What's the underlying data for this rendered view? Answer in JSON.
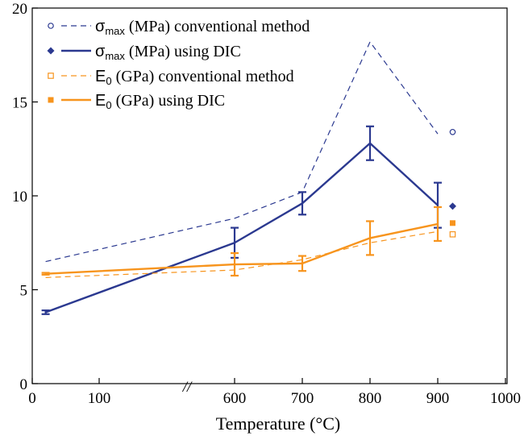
{
  "colors": {
    "sigma": "#2b3990",
    "modulus": "#f7941d",
    "axis": "#000000"
  },
  "chart_data": {
    "type": "line",
    "xlabel": "Temperature (°C)",
    "xlim": [
      0,
      1000
    ],
    "ylim": [
      0,
      20
    ],
    "x_ticks": [
      {
        "value": 0,
        "label": "0"
      },
      {
        "value": 100,
        "label": "100"
      },
      {
        "value": 600,
        "label": "600"
      },
      {
        "value": 700,
        "label": "700"
      },
      {
        "value": 800,
        "label": "800"
      },
      {
        "value": 900,
        "label": "900"
      },
      {
        "value": 1000,
        "label": "1000"
      }
    ],
    "y_ticks": [
      {
        "value": 0,
        "label": "0"
      },
      {
        "value": 5,
        "label": "5"
      },
      {
        "value": 10,
        "label": "10"
      },
      {
        "value": 15,
        "label": "15"
      },
      {
        "value": 20,
        "label": "20"
      }
    ],
    "axis_break_symbol": "//",
    "grid": false,
    "legend_placement": "top-left",
    "series": [
      {
        "sym": "σ",
        "sub": "max",
        "rest": " (MPa) conventional method",
        "color": "#2b3990",
        "dash": true,
        "marker": "circle-open",
        "x": [
          20,
          600,
          700,
          800,
          900
        ],
        "y": [
          6.5,
          8.8,
          10.2,
          18.2,
          13.3
        ],
        "avg": {
          "x": 922,
          "y": 13.4
        }
      },
      {
        "sym": "σ",
        "sub": "max",
        "rest": " (MPa) using DIC",
        "color": "#2b3990",
        "dash": false,
        "marker": "diamond-filled",
        "x": [
          20,
          600,
          700,
          800,
          900
        ],
        "y": [
          3.8,
          7.5,
          9.6,
          12.8,
          9.5
        ],
        "err": [
          0.1,
          0.8,
          0.6,
          0.9,
          1.2
        ],
        "avg": {
          "x": 922,
          "y": 9.45
        }
      },
      {
        "sym": "E",
        "sub": "0",
        "rest": "  (GPa) conventional method",
        "color": "#f7941d",
        "dash": true,
        "marker": "square-open",
        "x": [
          20,
          600,
          700,
          800,
          900
        ],
        "y": [
          5.65,
          6.05,
          6.6,
          7.5,
          8.1
        ],
        "avg": {
          "x": 922,
          "y": 7.95
        }
      },
      {
        "sym": "E",
        "sub": "0",
        "rest": "  (GPa) using DIC",
        "color": "#f7941d",
        "dash": false,
        "marker": "square-filled",
        "x": [
          20,
          600,
          700,
          800,
          900
        ],
        "y": [
          5.85,
          6.35,
          6.4,
          7.75,
          8.5
        ],
        "err": [
          0.05,
          0.6,
          0.4,
          0.9,
          0.9
        ],
        "avg": {
          "x": 922,
          "y": 8.55
        }
      }
    ]
  }
}
